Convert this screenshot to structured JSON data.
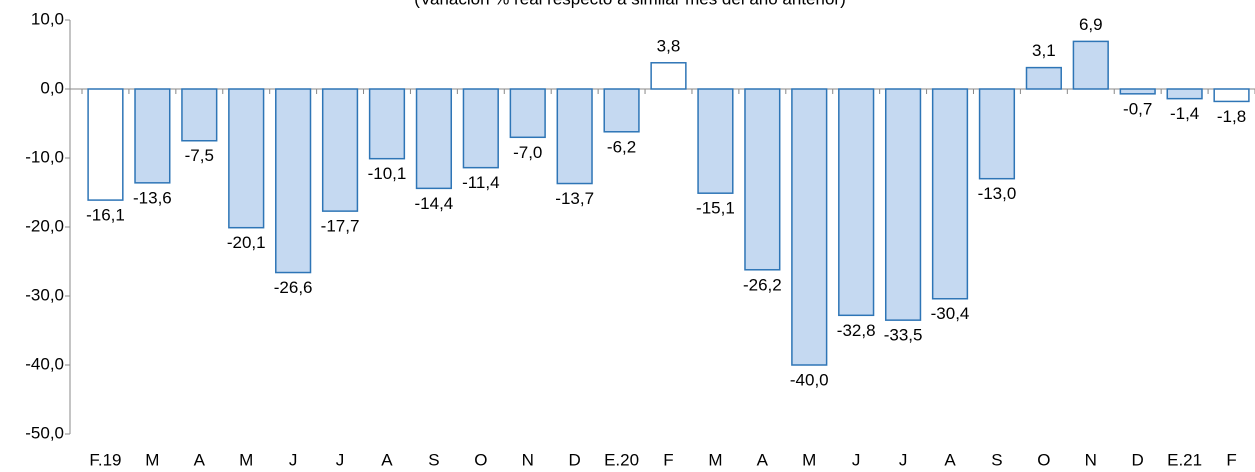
{
  "chart_data": {
    "type": "bar",
    "subtitle": "(Variación % real respecto a similar mes del año anterior)",
    "categories": [
      "F.19",
      "M",
      "A",
      "M",
      "J",
      "J",
      "A",
      "S",
      "O",
      "N",
      "D",
      "E.20",
      "F",
      "M",
      "A",
      "M",
      "J",
      "J",
      "A",
      "S",
      "O",
      "N",
      "D",
      "E.21",
      "F"
    ],
    "values": [
      -16.1,
      -13.6,
      -7.5,
      -20.1,
      -26.6,
      -17.7,
      -10.1,
      -14.4,
      -11.4,
      -7.0,
      -13.7,
      -6.2,
      3.8,
      -15.1,
      -26.2,
      -40.0,
      -32.8,
      -33.5,
      -30.4,
      -13.0,
      3.1,
      6.9,
      -0.7,
      -1.4,
      -1.8
    ],
    "value_labels": [
      "-16,1",
      "-13,6",
      "-7,5",
      "-20,1",
      "-26,6",
      "-17,7",
      "-10,1",
      "-14,4",
      "-11,4",
      "-7,0",
      "-13,7",
      "-6,2",
      "3,8",
      "-15,1",
      "-26,2",
      "-40,0",
      "-32,8",
      "-33,5",
      "-30,4",
      "-13,0",
      "3,1",
      "6,9",
      "-0,7",
      "-1,4",
      "-1,8"
    ],
    "colors": [
      "#ffffff",
      "#c5d9f1",
      "#c5d9f1",
      "#c5d9f1",
      "#c5d9f1",
      "#c5d9f1",
      "#c5d9f1",
      "#c5d9f1",
      "#c5d9f1",
      "#c5d9f1",
      "#c5d9f1",
      "#c5d9f1",
      "#ffffff",
      "#c5d9f1",
      "#c5d9f1",
      "#c5d9f1",
      "#c5d9f1",
      "#c5d9f1",
      "#c5d9f1",
      "#c5d9f1",
      "#c5d9f1",
      "#c5d9f1",
      "#c5d9f1",
      "#c5d9f1",
      "#ffffff"
    ],
    "edge_color": "#2e75b6",
    "ylim": [
      -50,
      10
    ],
    "yticks": [
      {
        "value": -50,
        "label": "-50,0"
      },
      {
        "value": -40,
        "label": "-40,0"
      },
      {
        "value": -30,
        "label": "-30,0"
      },
      {
        "value": -20,
        "label": "-20,0"
      },
      {
        "value": -10,
        "label": "-10,0"
      },
      {
        "value": 0,
        "label": "0,0"
      },
      {
        "value": 10,
        "label": "10,0"
      }
    ]
  }
}
